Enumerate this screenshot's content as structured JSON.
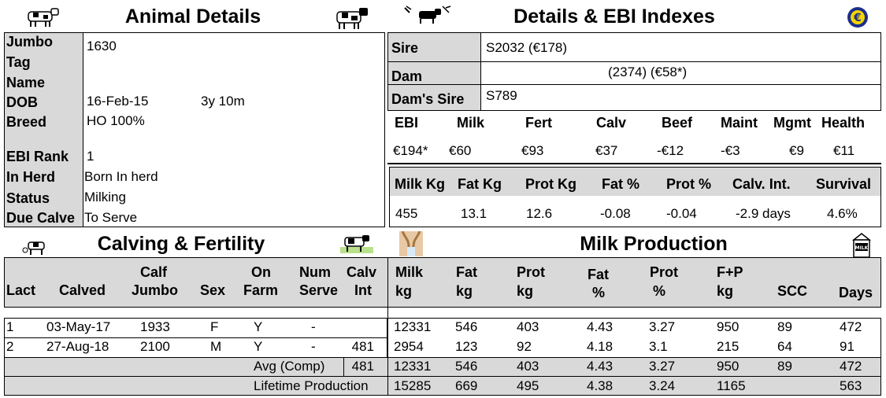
{
  "animal_details": {
    "title": "Animal Details",
    "fields": [
      {
        "label": "Jumbo",
        "value": "1630"
      },
      {
        "label": "Tag",
        "value": ""
      },
      {
        "label": "Name",
        "value": ""
      },
      {
        "label": "DOB",
        "value": "16-Feb-15",
        "extra": "3y 10m"
      },
      {
        "label": "Breed",
        "value": "HO 100%"
      },
      {
        "label": "EBI Rank",
        "value": "1"
      },
      {
        "label": "In Herd",
        "value": "Born In herd"
      },
      {
        "label": "Status",
        "value": "Milking"
      },
      {
        "label": "Due Calve",
        "value": "To Serve"
      }
    ]
  },
  "ebi": {
    "title": "Details & EBI Indexes",
    "sire_label": "Sire",
    "sire_value": "S2032 (€178)",
    "dam_label": "Dam",
    "dam_value": "(2374)  (€58*)",
    "dams_sire_label": "Dam's Sire",
    "dams_sire_value": "S789",
    "index_headers": [
      "EBI",
      "Milk",
      "Fert",
      "Calv",
      "Beef",
      "Maint",
      "Mgmt",
      "Health"
    ],
    "index_values": [
      "€194*",
      "€60",
      "€93",
      "€37",
      "-€12",
      "-€3",
      "€9",
      "€11"
    ],
    "prod_headers": [
      "Milk Kg",
      "Fat Kg",
      "Prot Kg",
      "Fat %",
      "Prot %",
      "Calv. Int.",
      "Survival"
    ],
    "prod_values": [
      "455",
      "13.1",
      "12.6",
      "-0.08",
      "-0.04",
      "-2.9 days",
      "4.6%"
    ]
  },
  "calving": {
    "title": "Calving & Fertility",
    "headers": [
      [
        "",
        "Lact"
      ],
      [
        "",
        "Calved"
      ],
      [
        "Calf",
        "Jumbo"
      ],
      [
        "",
        "Sex"
      ],
      [
        "On",
        "Farm"
      ],
      [
        "Num",
        "Serve"
      ],
      [
        "Calv",
        "Int"
      ]
    ],
    "rows": [
      [
        "1",
        "03-May-17",
        "1933",
        "F",
        "Y",
        "-",
        ""
      ],
      [
        "2",
        "27-Aug-18",
        "2100",
        "M",
        "Y",
        "-",
        "481"
      ]
    ],
    "avg_label": "Avg (Comp)",
    "avg_int": "481",
    "lifetime_label": "Lifetime Production"
  },
  "milk": {
    "title": "Milk Production",
    "headers": [
      [
        "Milk",
        "kg"
      ],
      [
        "Fat",
        "kg"
      ],
      [
        "Prot",
        "kg"
      ],
      [
        "Fat",
        "%"
      ],
      [
        "Prot",
        "%"
      ],
      [
        "F+P",
        "kg"
      ],
      [
        "",
        "SCC"
      ],
      [
        "",
        "Days"
      ]
    ],
    "rows": [
      [
        "12331",
        "546",
        "403",
        "4.43",
        "3.27",
        "950",
        "89",
        "472"
      ],
      [
        "2954",
        "123",
        "92",
        "4.18",
        "3.1",
        "215",
        "64",
        "91"
      ]
    ],
    "avg": [
      "12331",
      "546",
      "403",
      "4.43",
      "3.27",
      "950",
      "89",
      "472"
    ],
    "lifetime": [
      "15285",
      "669",
      "495",
      "4.38",
      "3.24",
      "1165",
      "",
      "563"
    ]
  },
  "icons": {
    "cow_left": "cow-icon",
    "cow_right": "cow-icon",
    "bull": "bull-icon",
    "euro": "euro-icon",
    "calving": "calving-icon",
    "fertility": "cow-fertility-icon",
    "milking": "milking-icon",
    "milk_carton": "milk-carton-icon"
  },
  "colors": {
    "gray": "#d9d9d9",
    "euro_blue": "#1c2f8a",
    "euro_yellow": "#f4d500"
  }
}
